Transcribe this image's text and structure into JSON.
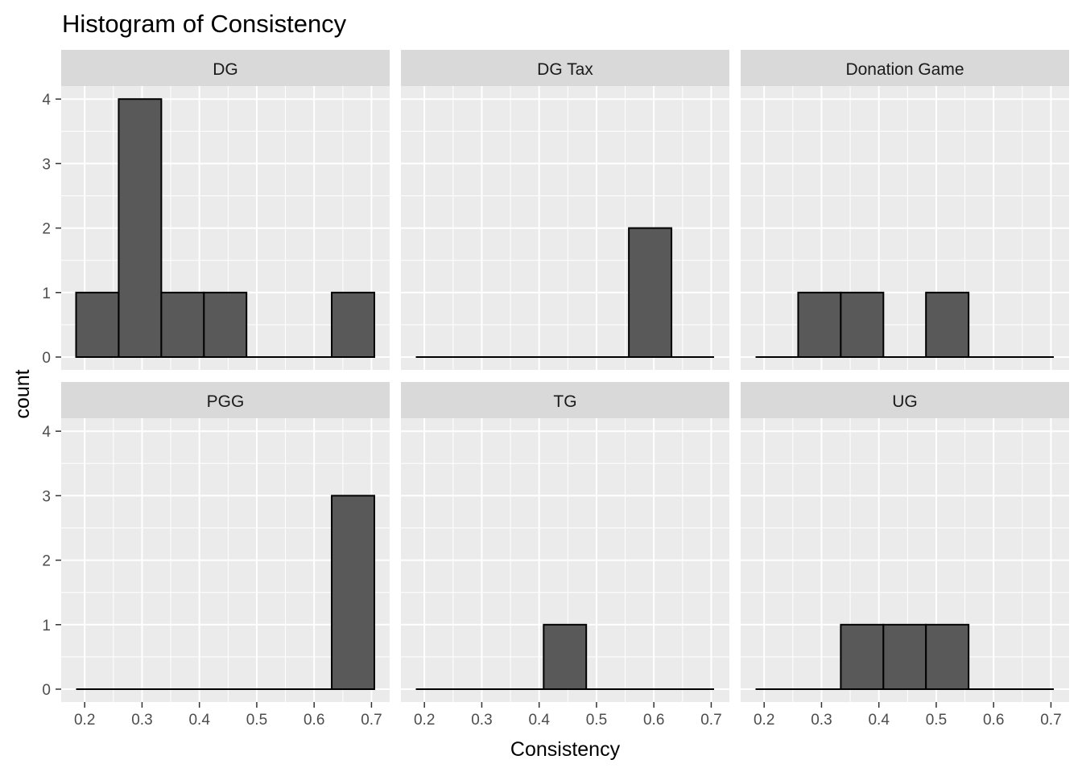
{
  "chart_data": {
    "type": "bar",
    "title": "Histogram of Consistency",
    "xlabel": "Consistency",
    "ylabel": "count",
    "xlim": [
      0.185,
      0.705
    ],
    "ylim": [
      0,
      4
    ],
    "x_ticks": [
      "0.2",
      "0.3",
      "0.4",
      "0.5",
      "0.6",
      "0.7"
    ],
    "y_ticks": [
      "0",
      "1",
      "2",
      "3",
      "4"
    ],
    "grid": true,
    "bin_edges": [
      0.185,
      0.2593,
      0.3336,
      0.4079,
      0.4821,
      0.5564,
      0.6307,
      0.705
    ],
    "colors": {
      "panel_bg": "#ebebeb",
      "strip_bg": "#d9d9d9",
      "bar_fill": "#595959",
      "bar_outline": "#000000",
      "grid": "#ffffff"
    },
    "facets": [
      {
        "name": "DG",
        "counts": [
          1,
          4,
          1,
          1,
          0,
          0,
          1
        ]
      },
      {
        "name": "DG Tax",
        "counts": [
          0,
          0,
          0,
          0,
          0,
          2,
          0
        ]
      },
      {
        "name": "Donation Game",
        "counts": [
          0,
          1,
          1,
          0,
          1,
          0,
          0
        ]
      },
      {
        "name": "PGG",
        "counts": [
          0,
          0,
          0,
          0,
          0,
          0,
          3
        ]
      },
      {
        "name": "TG",
        "counts": [
          0,
          0,
          0,
          1,
          0,
          0,
          0
        ]
      },
      {
        "name": "UG",
        "counts": [
          0,
          0,
          1,
          1,
          1,
          0,
          0
        ]
      }
    ]
  }
}
